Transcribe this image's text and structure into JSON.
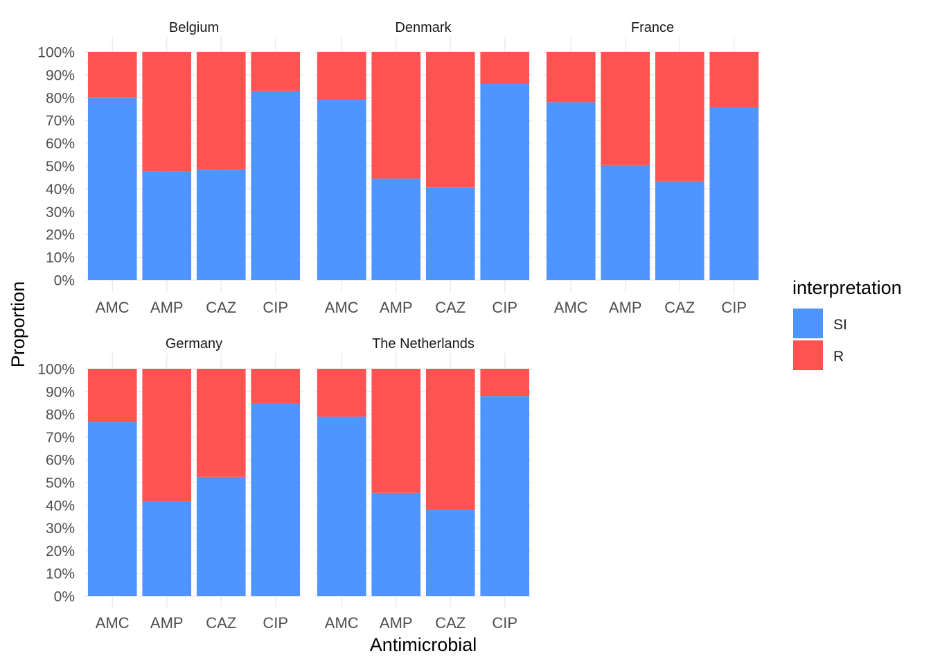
{
  "chart_data": {
    "type": "bar",
    "stacked": true,
    "faceted": true,
    "xlabel": "Antimicrobial",
    "ylabel": "Proportion",
    "ylim": [
      0,
      1
    ],
    "y_ticks": [
      "0%",
      "10%",
      "20%",
      "30%",
      "40%",
      "50%",
      "60%",
      "70%",
      "80%",
      "90%",
      "100%"
    ],
    "categories": [
      "AMC",
      "AMP",
      "CAZ",
      "CIP"
    ],
    "legend": {
      "title": "interpretation",
      "position": "right",
      "entries": [
        {
          "name": "SI",
          "color": "#4F94FF"
        },
        {
          "name": "R",
          "color": "#FF5252"
        }
      ]
    },
    "grid": true,
    "panels": [
      {
        "title": "Belgium",
        "series": [
          {
            "name": "SI",
            "values": [
              0.8,
              0.475,
              0.485,
              0.83
            ]
          },
          {
            "name": "R",
            "values": [
              0.2,
              0.525,
              0.515,
              0.17
            ]
          }
        ]
      },
      {
        "title": "Denmark",
        "series": [
          {
            "name": "SI",
            "values": [
              0.79,
              0.445,
              0.405,
              0.86
            ]
          },
          {
            "name": "R",
            "values": [
              0.21,
              0.555,
              0.595,
              0.14
            ]
          }
        ]
      },
      {
        "title": "France",
        "series": [
          {
            "name": "SI",
            "values": [
              0.78,
              0.505,
              0.435,
              0.755
            ]
          },
          {
            "name": "R",
            "values": [
              0.22,
              0.495,
              0.565,
              0.245
            ]
          }
        ]
      },
      {
        "title": "Germany",
        "series": [
          {
            "name": "SI",
            "values": [
              0.765,
              0.415,
              0.525,
              0.845
            ]
          },
          {
            "name": "R",
            "values": [
              0.235,
              0.585,
              0.475,
              0.155
            ]
          }
        ]
      },
      {
        "title": "The Netherlands",
        "series": [
          {
            "name": "SI",
            "values": [
              0.79,
              0.455,
              0.38,
              0.88
            ]
          },
          {
            "name": "R",
            "values": [
              0.21,
              0.545,
              0.62,
              0.12
            ]
          }
        ]
      }
    ]
  }
}
